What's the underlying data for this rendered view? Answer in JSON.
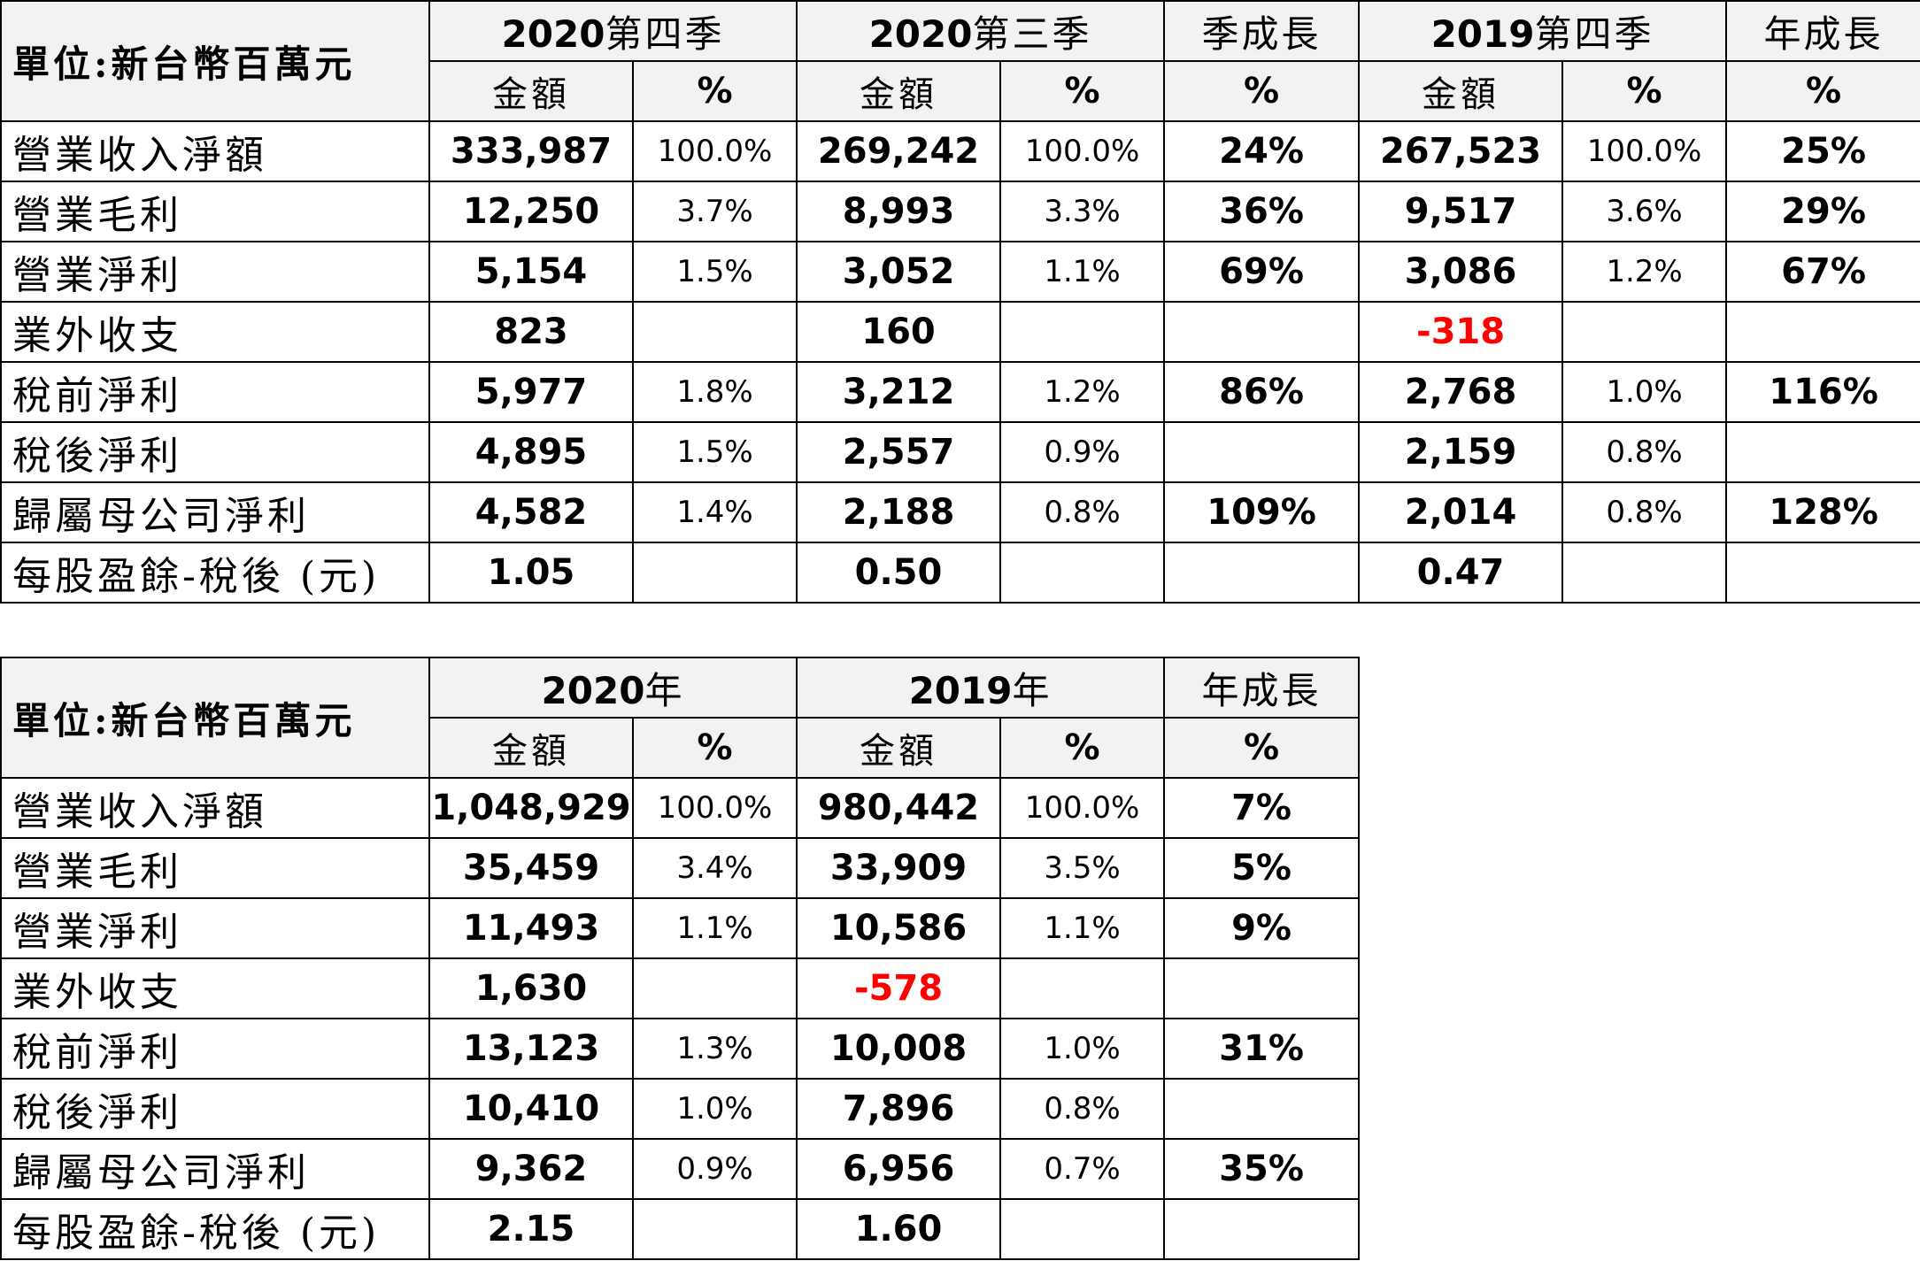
{
  "quarterly": {
    "unit_label": "單位:新台幣百萬元",
    "periods": [
      {
        "year": "2020",
        "suffix": "第四季"
      },
      {
        "year": "2020",
        "suffix": "第三季"
      },
      {
        "year": "",
        "suffix": "季成長"
      },
      {
        "year": "2019",
        "suffix": "第四季"
      },
      {
        "year": "",
        "suffix": "年成長"
      }
    ],
    "subheaders": [
      "金額",
      "%",
      "金額",
      "%",
      "%",
      "金額",
      "%",
      "%"
    ],
    "rows": [
      {
        "label": "營業收入淨額",
        "cells": [
          "333,987",
          "100.0%",
          "269,242",
          "100.0%",
          "24%",
          "267,523",
          "100.0%",
          "25%"
        ]
      },
      {
        "label": "營業毛利",
        "cells": [
          "12,250",
          "3.7%",
          "8,993",
          "3.3%",
          "36%",
          "9,517",
          "3.6%",
          "29%"
        ]
      },
      {
        "label": "營業淨利",
        "cells": [
          "5,154",
          "1.5%",
          "3,052",
          "1.1%",
          "69%",
          "3,086",
          "1.2%",
          "67%"
        ]
      },
      {
        "label": "業外收支",
        "cells": [
          "823",
          "",
          "160",
          "",
          "",
          "-318",
          "",
          ""
        ]
      },
      {
        "label": "稅前淨利",
        "cells": [
          "5,977",
          "1.8%",
          "3,212",
          "1.2%",
          "86%",
          "2,768",
          "1.0%",
          "116%"
        ]
      },
      {
        "label": "稅後淨利",
        "cells": [
          "4,895",
          "1.5%",
          "2,557",
          "0.9%",
          "",
          "2,159",
          "0.8%",
          ""
        ]
      },
      {
        "label": "歸屬母公司淨利",
        "cells": [
          "4,582",
          "1.4%",
          "2,188",
          "0.8%",
          "109%",
          "2,014",
          "0.8%",
          "128%"
        ]
      },
      {
        "label": "每股盈餘-稅後 (元)",
        "cells": [
          "1.05",
          "",
          "0.50",
          "",
          "",
          "0.47",
          "",
          ""
        ]
      }
    ]
  },
  "annual": {
    "unit_label": "單位:新台幣百萬元",
    "periods": [
      {
        "year": "2020",
        "suffix": "年"
      },
      {
        "year": "2019",
        "suffix": "年"
      },
      {
        "year": "",
        "suffix": "年成長"
      }
    ],
    "subheaders": [
      "金額",
      "%",
      "金額",
      "%",
      "%"
    ],
    "rows": [
      {
        "label": "營業收入淨額",
        "cells": [
          "1,048,929",
          "100.0%",
          "980,442",
          "100.0%",
          "7%"
        ]
      },
      {
        "label": "營業毛利",
        "cells": [
          "35,459",
          "3.4%",
          "33,909",
          "3.5%",
          "5%"
        ]
      },
      {
        "label": "營業淨利",
        "cells": [
          "11,493",
          "1.1%",
          "10,586",
          "1.1%",
          "9%"
        ]
      },
      {
        "label": "業外收支",
        "cells": [
          "1,630",
          "",
          "-578",
          "",
          ""
        ]
      },
      {
        "label": "稅前淨利",
        "cells": [
          "13,123",
          "1.3%",
          "10,008",
          "1.0%",
          "31%"
        ]
      },
      {
        "label": "稅後淨利",
        "cells": [
          "10,410",
          "1.0%",
          "7,896",
          "0.8%",
          ""
        ]
      },
      {
        "label": "歸屬母公司淨利",
        "cells": [
          "9,362",
          "0.9%",
          "6,956",
          "0.7%",
          "35%"
        ]
      },
      {
        "label": "每股盈餘-稅後 (元)",
        "cells": [
          "2.15",
          "",
          "1.60",
          "",
          ""
        ]
      }
    ]
  },
  "colors": {
    "negative": "#ff0000",
    "header_background": "#f2f2f2",
    "border": "#000000"
  }
}
